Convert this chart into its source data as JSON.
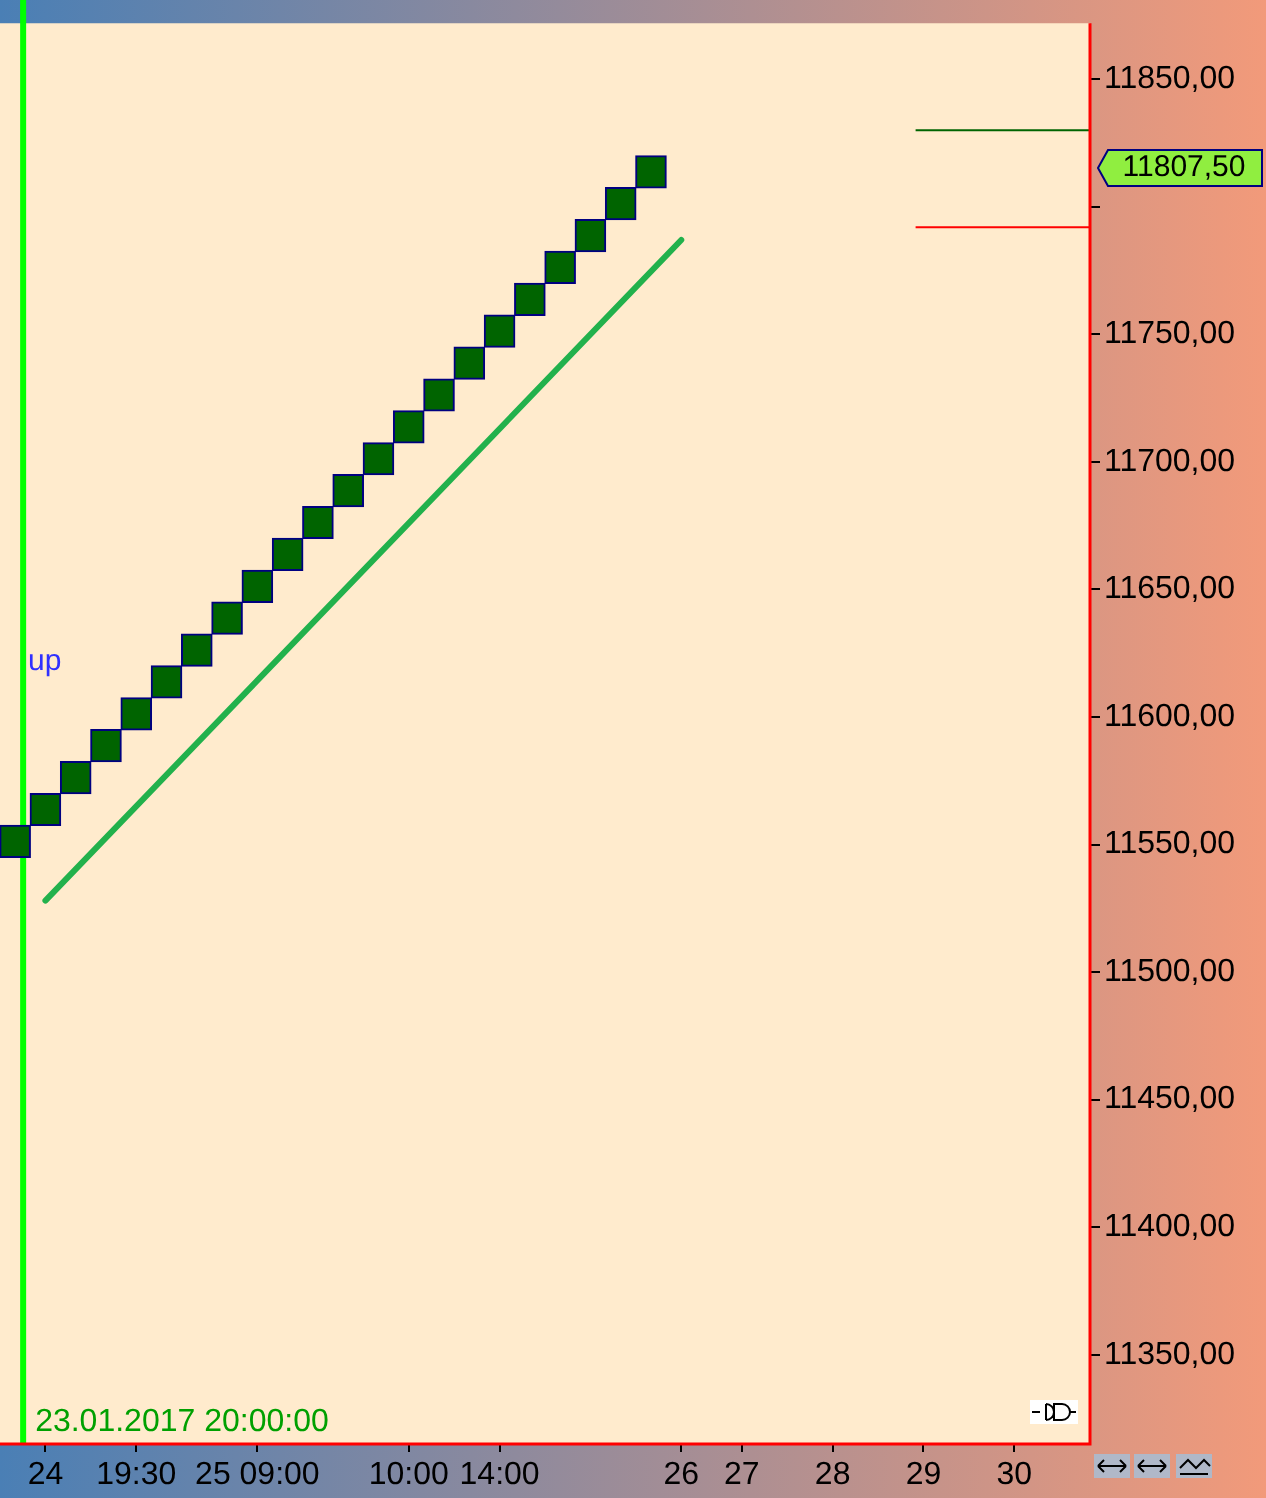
{
  "chart_data": {
    "type": "bar",
    "categories": [
      null,
      "24",
      null,
      null,
      "19:30",
      null,
      null,
      null,
      "25 09:00",
      null,
      null,
      null,
      null,
      "10:00",
      null,
      null,
      "14:00",
      null,
      null,
      null,
      null,
      null,
      "26",
      null,
      "27",
      null,
      null,
      "28",
      null,
      null,
      "29",
      null,
      null,
      "30",
      null,
      null
    ],
    "series": [
      {
        "color": "#006400",
        "base": [
          11545,
          11557.5,
          11570,
          11582.5,
          11595,
          11607.5,
          11620,
          11632.5,
          11645,
          11657.5,
          11670,
          11682.5,
          11695,
          11707.5,
          11720,
          11732.5,
          11745,
          11757.5,
          11770,
          11782.5,
          11795,
          11807.5,
          null,
          null,
          null,
          null,
          null,
          null,
          null,
          null,
          null,
          null,
          null,
          null,
          null,
          null
        ],
        "values": [
          12.5,
          12.5,
          12.5,
          12.5,
          12.5,
          12.5,
          12.5,
          12.5,
          12.5,
          12.5,
          12.5,
          12.5,
          12.5,
          12.5,
          12.5,
          12.5,
          12.5,
          12.5,
          12.5,
          12.5,
          12.5,
          12.5,
          null,
          null,
          null,
          null,
          null,
          null,
          null,
          null,
          null,
          null,
          null,
          null,
          null,
          null
        ]
      },
      {
        "type": "line",
        "color": "#22b14c",
        "values": [
          null,
          11528,
          null,
          null,
          null,
          null,
          null,
          null,
          null,
          null,
          null,
          null,
          null,
          null,
          null,
          null,
          null,
          null,
          null,
          null,
          null,
          null,
          11787,
          null,
          null,
          null,
          null,
          null,
          null,
          null,
          null,
          null,
          null,
          null,
          null,
          null
        ]
      }
    ],
    "ylim": [
      11315,
      11872
    ],
    "yticks": [
      {
        "value": 11350,
        "label": "11350,00"
      },
      {
        "value": 11400,
        "label": "11400,00"
      },
      {
        "value": 11450,
        "label": "11450,00"
      },
      {
        "value": 11500,
        "label": "11500,00"
      },
      {
        "value": 11550,
        "label": "11550,00"
      },
      {
        "value": 11600,
        "label": "11600,00"
      },
      {
        "value": 11650,
        "label": "11650,00"
      },
      {
        "value": 11700,
        "label": "11700,00"
      },
      {
        "value": 11750,
        "label": "11750,00"
      },
      {
        "value": 11800,
        "label": null
      },
      {
        "value": 11850,
        "label": "11850,00"
      }
    ],
    "ref_lines": [
      {
        "axis": "y",
        "value": 11830,
        "color": "#006400"
      },
      {
        "axis": "y",
        "value": 11792,
        "color": "#ff0000"
      },
      {
        "axis": "x",
        "label": "23.01.2017 20:00:00",
        "color": "#00ff00"
      }
    ],
    "annotations": [
      "up",
      "11807,50"
    ],
    "grid": false,
    "legend": false
  }
}
